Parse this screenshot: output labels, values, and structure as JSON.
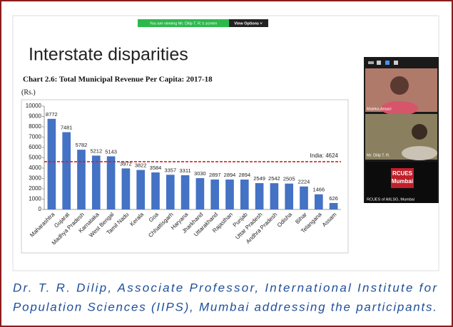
{
  "zoom": {
    "banner": "You are viewing Mr. Dilip T. R.'s screen",
    "view_options": "View Options ˅",
    "participants": [
      "Maleka Ansari",
      "Mr. Dilip T. R.",
      "RCUES of AIILSG, Mumbai"
    ],
    "logo": [
      "RCUES",
      "Mumbai"
    ]
  },
  "slide_title": "Interstate disparities",
  "chart_data": {
    "type": "bar",
    "title": "Chart 2.6: Total Municipal Revenue Per Capita: 2017-18",
    "y_label": "(Rs.)",
    "categories": [
      "Maharashtra",
      "Gujarat",
      "Madhya Pradesh",
      "Karnataka",
      "West Bengal",
      "Tamil Nadu",
      "Kerala",
      "Goa",
      "Chhattisgarh",
      "Haryana",
      "Jharkhand",
      "Uttarakhand",
      "Rajasthan",
      "Punjab",
      "Uttar Pradesh",
      "Andhra Pradesh",
      "Odisha",
      "Bihar",
      "Telangana",
      "Assam"
    ],
    "values": [
      8772,
      7481,
      5782,
      5212,
      5143,
      3972,
      3822,
      3584,
      3357,
      3311,
      3030,
      2897,
      2894,
      2894,
      2549,
      2542,
      2505,
      2224,
      1466,
      626
    ],
    "color": "#4472c4",
    "ylim": [
      0,
      10000
    ],
    "yticks": [
      0,
      1000,
      2000,
      3000,
      4000,
      5000,
      6000,
      7000,
      8000,
      9000,
      10000
    ],
    "reference_value": 4624,
    "reference_label": "India: 4624",
    "reference_color": "#d62020"
  },
  "caption": [
    "Dr. T. R. Dilip, Associate Professor, International Institute for",
    "Population Sciences (IIPS), Mumbai addressing the participants."
  ]
}
